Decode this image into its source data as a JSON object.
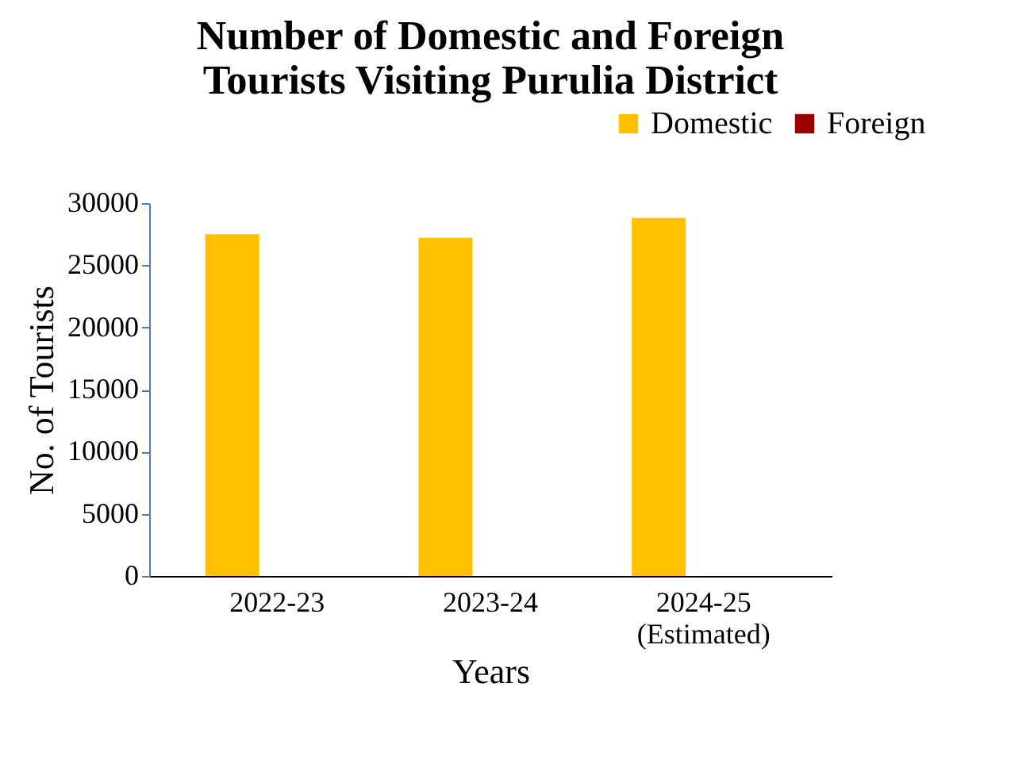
{
  "chart_data": {
    "type": "bar",
    "title": "Number of Domestic and Foreign\nTourists Visiting Purulia District",
    "xlabel": "Years",
    "ylabel": "No. of Tourists",
    "categories": [
      "2022-23",
      "2023-24",
      "2024-25\n(Estimated)"
    ],
    "series": [
      {
        "name": "Domestic",
        "color": "#ffc000",
        "values": [
          27500,
          27200,
          28800
        ]
      },
      {
        "name": "Foreign",
        "color": "#990000",
        "values": [
          0,
          0,
          0
        ]
      }
    ],
    "ylim": [
      0,
      30000
    ],
    "yticks": [
      0,
      5000,
      10000,
      15000,
      20000,
      25000,
      30000
    ],
    "grid": false,
    "legend": "top right"
  }
}
